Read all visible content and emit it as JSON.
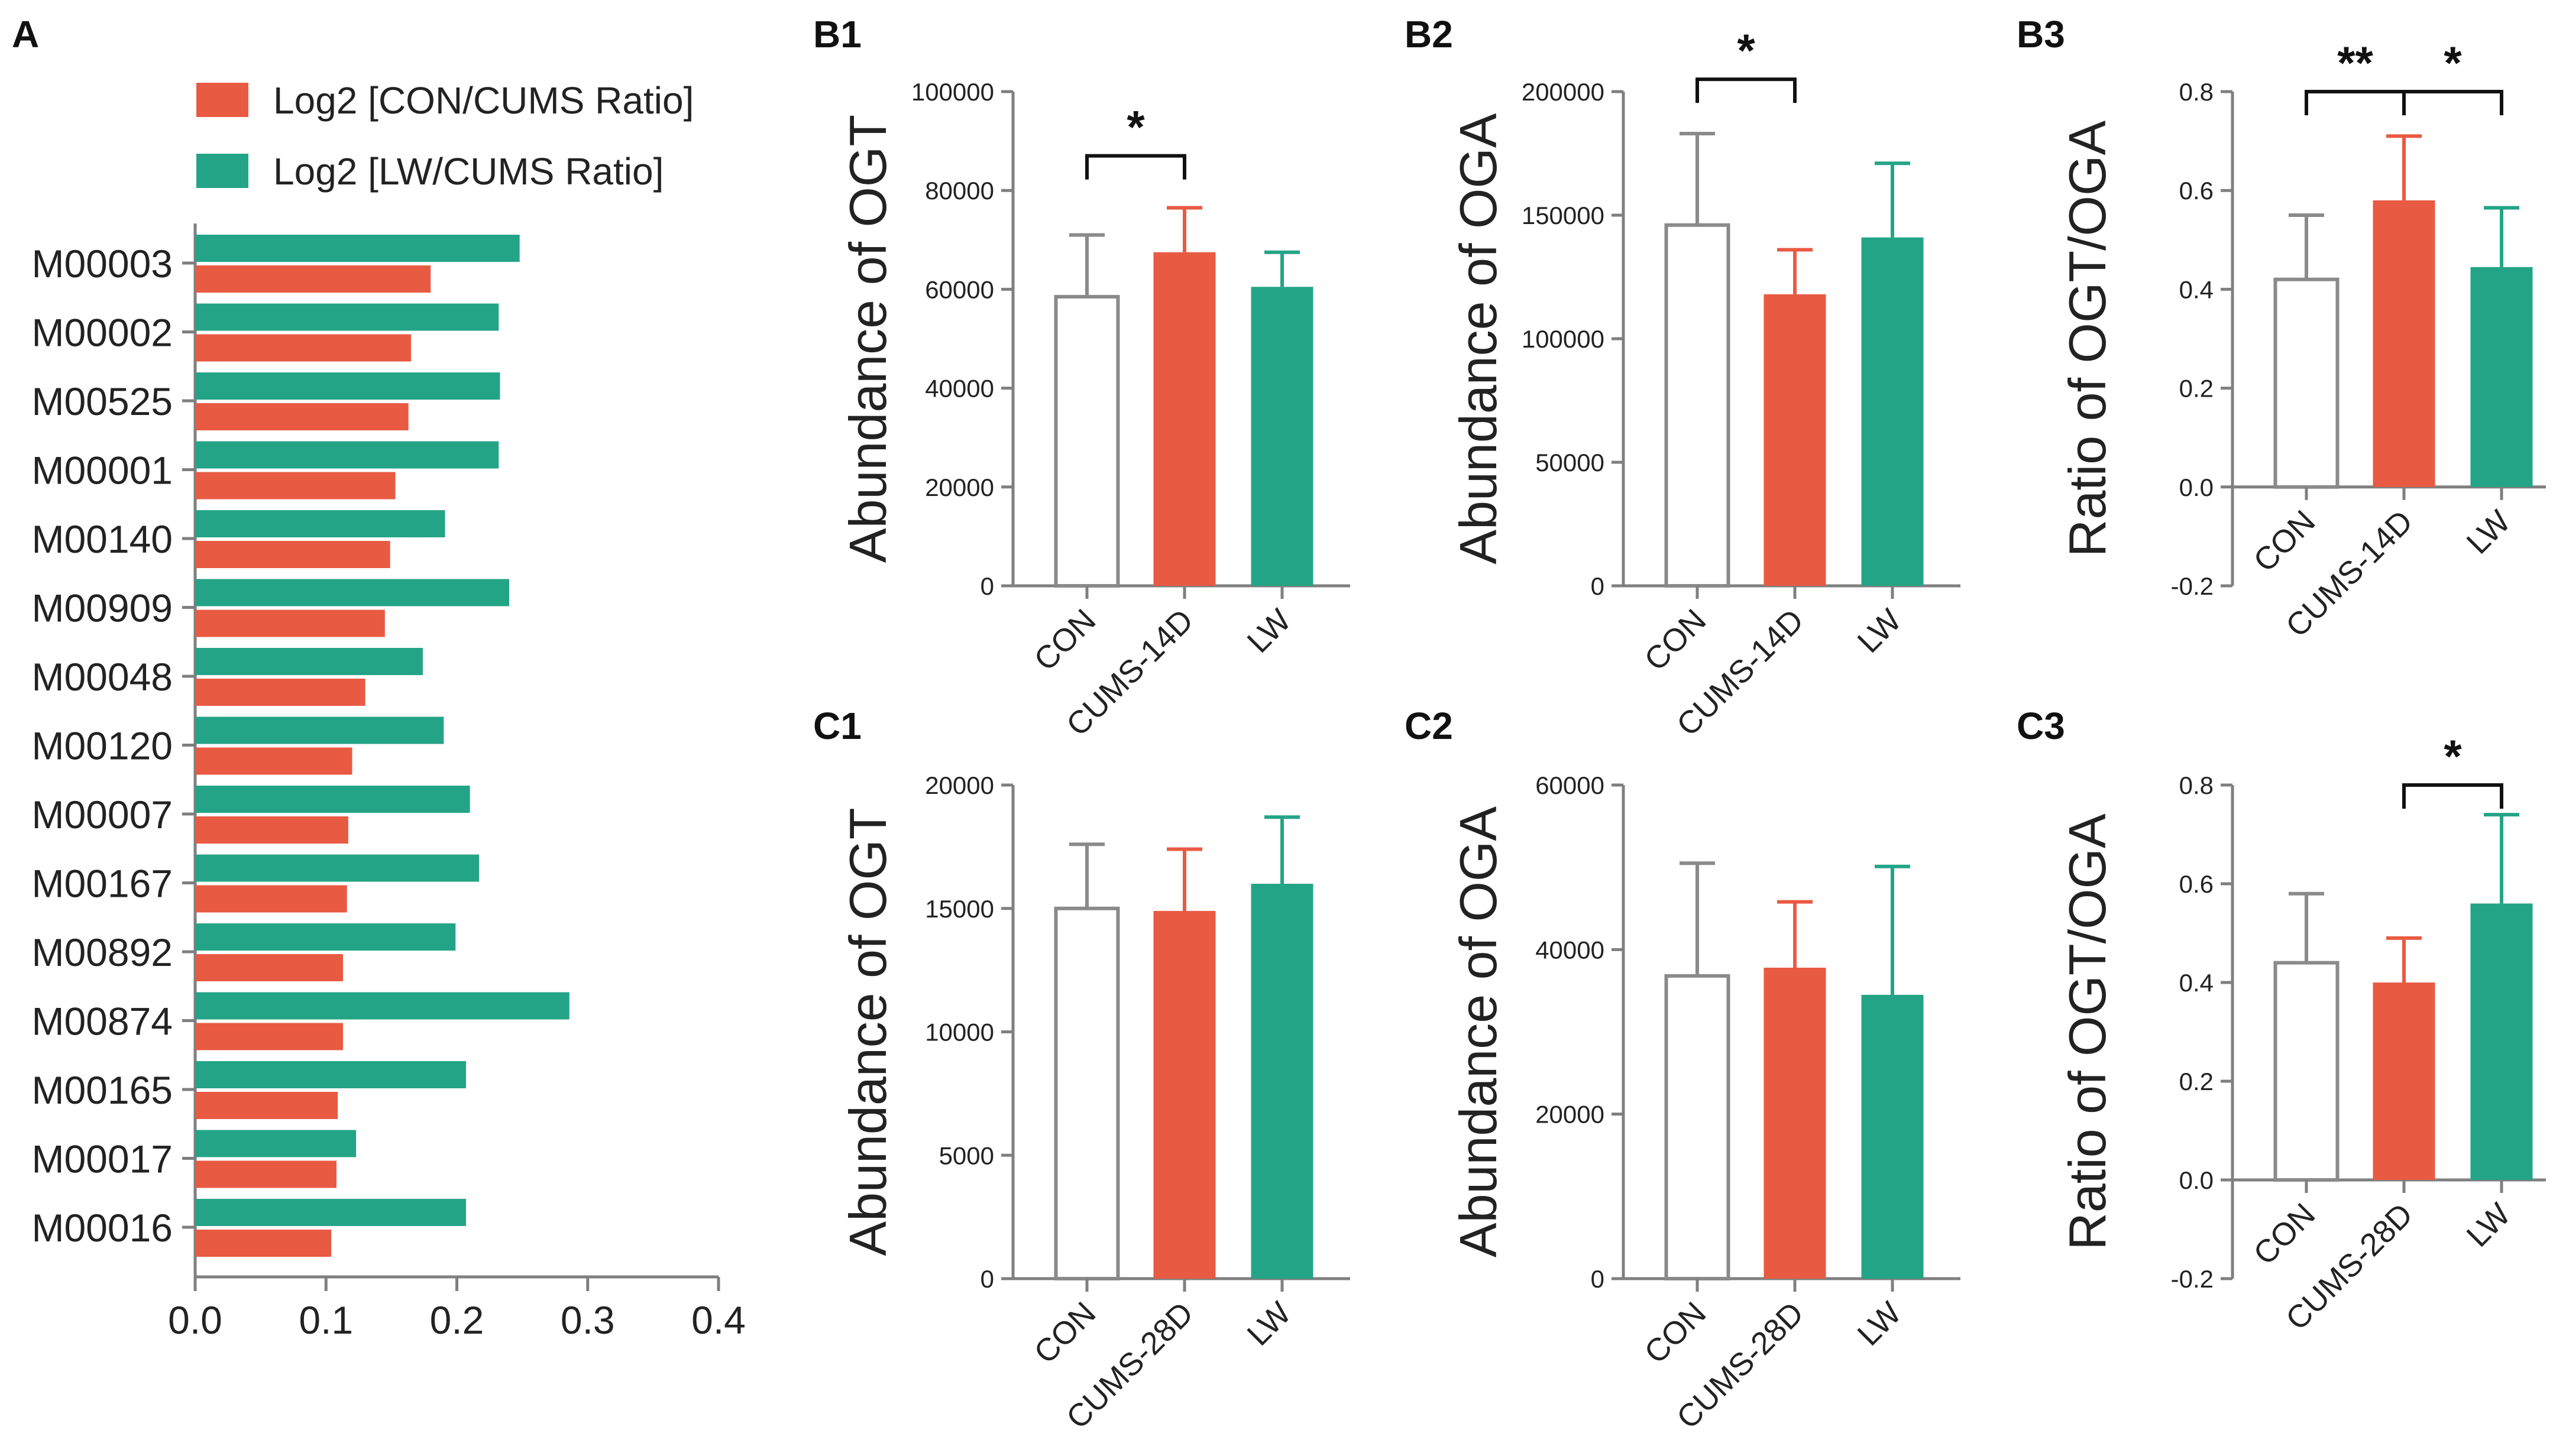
{
  "colors": {
    "red": "#E95A43",
    "green": "#24A487",
    "axis": "#7f7f7f",
    "outline": "#8a8a8a",
    "bracket": "#111111"
  },
  "chart_data": [
    {
      "id": "A",
      "panel_label": "A",
      "type": "bar",
      "orientation": "horizontal",
      "categories": [
        "M00003",
        "M00002",
        "M00525",
        "M00001",
        "M00140",
        "M00909",
        "M00048",
        "M00120",
        "M00007",
        "M00167",
        "M00892",
        "M00874",
        "M00165",
        "M00017",
        "M00016"
      ],
      "series": [
        {
          "name": "Log2 [CON/CUMS Ratio]",
          "color": "#E95A43",
          "values": [
            0.18,
            0.165,
            0.163,
            0.153,
            0.149,
            0.145,
            0.13,
            0.12,
            0.117,
            0.116,
            0.113,
            0.113,
            0.109,
            0.108,
            0.104
          ]
        },
        {
          "name": "Log2 [LW/CUMS Ratio]",
          "color": "#24A487",
          "values": [
            0.248,
            0.232,
            0.233,
            0.232,
            0.191,
            0.24,
            0.174,
            0.19,
            0.21,
            0.217,
            0.199,
            0.286,
            0.207,
            0.123,
            0.207
          ]
        }
      ],
      "xlim": [
        0,
        0.4
      ],
      "xticks": [
        "0.0",
        "0.1",
        "0.2",
        "0.3",
        "0.4"
      ],
      "legend_position": "top"
    },
    {
      "id": "B1",
      "panel_label": "B1",
      "type": "bar",
      "categories": [
        "CON",
        "CUMS-14D",
        "LW"
      ],
      "values": [
        58500,
        67500,
        60500
      ],
      "errors": [
        12500,
        9000,
        7000
      ],
      "ylabel": "Abundance of OGT",
      "ylim": [
        0,
        100000
      ],
      "yticks": [
        "0",
        "20000",
        "40000",
        "60000",
        "80000",
        "100000"
      ],
      "significance": [
        {
          "from": 0,
          "to": 1,
          "label": "*",
          "y": 87000
        }
      ]
    },
    {
      "id": "B2",
      "panel_label": "B2",
      "type": "bar",
      "categories": [
        "CON",
        "CUMS-14D",
        "LW"
      ],
      "values": [
        146000,
        118000,
        141000
      ],
      "errors": [
        37000,
        18000,
        30000
      ],
      "ylabel": "Abundance of OGA",
      "ylim": [
        0,
        200000
      ],
      "yticks": [
        "0",
        "50000",
        "100000",
        "150000",
        "200000"
      ],
      "significance": [
        {
          "from": 0,
          "to": 1,
          "label": "*",
          "y": 205000
        }
      ]
    },
    {
      "id": "B3",
      "panel_label": "B3",
      "type": "bar",
      "categories": [
        "CON",
        "CUMS-14D",
        "LW"
      ],
      "values": [
        0.42,
        0.58,
        0.445
      ],
      "errors": [
        0.13,
        0.13,
        0.12
      ],
      "ylabel": "Ratio of OGT/OGA",
      "ylim": [
        -0.2,
        0.8
      ],
      "yticks": [
        "-0.2",
        "0.0",
        "0.2",
        "0.4",
        "0.6",
        "0.8"
      ],
      "significance": [
        {
          "from": 0,
          "to": 1,
          "label": "**",
          "y": 0.8
        },
        {
          "from": 1,
          "to": 2,
          "label": "*",
          "y": 0.8
        }
      ]
    },
    {
      "id": "C1",
      "panel_label": "C1",
      "type": "bar",
      "categories": [
        "CON",
        "CUMS-28D",
        "LW"
      ],
      "values": [
        15000,
        14900,
        16000
      ],
      "errors": [
        2600,
        2500,
        2700
      ],
      "ylabel": "Abundance of OGT",
      "ylim": [
        0,
        20000
      ],
      "yticks": [
        "0",
        "5000",
        "10000",
        "15000",
        "20000"
      ],
      "significance": []
    },
    {
      "id": "C2",
      "panel_label": "C2",
      "type": "bar",
      "categories": [
        "CON",
        "CUMS-28D",
        "LW"
      ],
      "values": [
        36800,
        37800,
        34500
      ],
      "errors": [
        13700,
        8000,
        15600
      ],
      "ylabel": "Abundance of OGA",
      "ylim": [
        0,
        60000
      ],
      "yticks": [
        "0",
        "20000",
        "40000",
        "60000"
      ],
      "significance": []
    },
    {
      "id": "C3",
      "panel_label": "C3",
      "type": "bar",
      "categories": [
        "CON",
        "CUMS-28D",
        "LW"
      ],
      "values": [
        0.44,
        0.4,
        0.56
      ],
      "errors": [
        0.14,
        0.09,
        0.18
      ],
      "ylabel": "Ratio of OGT/OGA",
      "ylim": [
        -0.2,
        0.8
      ],
      "yticks": [
        "-0.2",
        "0.0",
        "0.2",
        "0.4",
        "0.6",
        "0.8"
      ],
      "significance": [
        {
          "from": 1,
          "to": 2,
          "label": "*",
          "y": 0.8
        }
      ]
    }
  ]
}
